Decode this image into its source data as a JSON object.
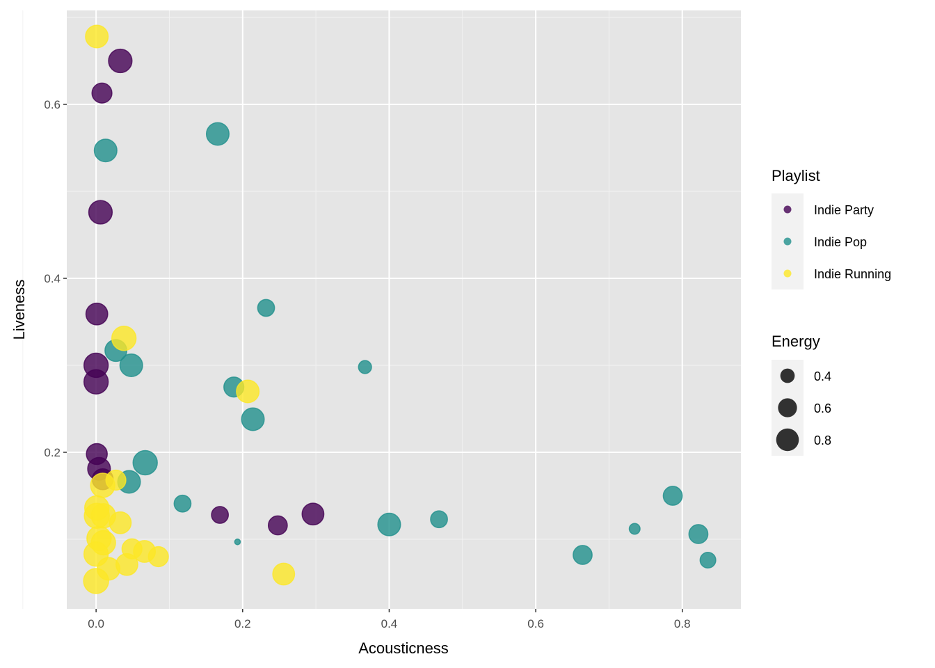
{
  "chart_data": {
    "type": "scatter",
    "title": "",
    "xlabel": "Acousticness",
    "ylabel": "Liveness",
    "xlim": [
      -0.04,
      0.88
    ],
    "ylim": [
      0.02,
      0.708
    ],
    "xticks": [
      0.0,
      0.2,
      0.4,
      0.6,
      0.8
    ],
    "xtick_labels": [
      "0.0",
      "0.2",
      "0.4",
      "0.6",
      "0.8"
    ],
    "yticks": [
      0.2,
      0.4,
      0.6
    ],
    "ytick_labels": [
      "0.2",
      "0.4",
      "0.6"
    ],
    "grid": true,
    "legend_placement": "right",
    "color_legend": {
      "title": "Playlist",
      "entries": [
        "Indie Party",
        "Indie Pop",
        "Indie Running"
      ]
    },
    "size_legend": {
      "title": "Energy",
      "entries": [
        0.4,
        0.6,
        0.8
      ],
      "labels": [
        "0.4",
        "0.6",
        "0.8"
      ]
    },
    "colors": {
      "Indie Party": "#440154",
      "Indie Pop": "#21908C",
      "Indie Running": "#FDE725"
    },
    "series": [
      {
        "name": "Indie Party",
        "points": [
          {
            "x": 0.033,
            "y": 0.65,
            "energy": 0.85
          },
          {
            "x": 0.008,
            "y": 0.613,
            "energy": 0.65
          },
          {
            "x": 0.006,
            "y": 0.476,
            "energy": 0.85
          },
          {
            "x": 0.001,
            "y": 0.359,
            "energy": 0.75
          },
          {
            "x": 0.0,
            "y": 0.3,
            "energy": 0.9
          },
          {
            "x": 0.0,
            "y": 0.281,
            "energy": 0.9
          },
          {
            "x": 0.001,
            "y": 0.198,
            "energy": 0.7
          },
          {
            "x": 0.004,
            "y": 0.181,
            "energy": 0.8
          },
          {
            "x": 0.009,
            "y": 0.169,
            "energy": 0.7
          },
          {
            "x": 0.169,
            "y": 0.128,
            "energy": 0.5
          },
          {
            "x": 0.248,
            "y": 0.116,
            "energy": 0.6
          },
          {
            "x": 0.296,
            "y": 0.129,
            "energy": 0.75
          }
        ]
      },
      {
        "name": "Indie Pop",
        "points": [
          {
            "x": 0.166,
            "y": 0.566,
            "energy": 0.8
          },
          {
            "x": 0.013,
            "y": 0.547,
            "energy": 0.8
          },
          {
            "x": 0.232,
            "y": 0.366,
            "energy": 0.5
          },
          {
            "x": 0.367,
            "y": 0.298,
            "energy": 0.35
          },
          {
            "x": 0.027,
            "y": 0.317,
            "energy": 0.75
          },
          {
            "x": 0.048,
            "y": 0.3,
            "energy": 0.8
          },
          {
            "x": 0.188,
            "y": 0.275,
            "energy": 0.65
          },
          {
            "x": 0.214,
            "y": 0.238,
            "energy": 0.8
          },
          {
            "x": 0.067,
            "y": 0.188,
            "energy": 0.9
          },
          {
            "x": 0.045,
            "y": 0.166,
            "energy": 0.8
          },
          {
            "x": 0.118,
            "y": 0.141,
            "energy": 0.5
          },
          {
            "x": 0.193,
            "y": 0.097,
            "energy": 0.17
          },
          {
            "x": 0.4,
            "y": 0.117,
            "energy": 0.8
          },
          {
            "x": 0.468,
            "y": 0.123,
            "energy": 0.5
          },
          {
            "x": 0.735,
            "y": 0.112,
            "energy": 0.28
          },
          {
            "x": 0.787,
            "y": 0.15,
            "energy": 0.6
          },
          {
            "x": 0.822,
            "y": 0.106,
            "energy": 0.6
          },
          {
            "x": 0.835,
            "y": 0.076,
            "energy": 0.45
          },
          {
            "x": 0.664,
            "y": 0.082,
            "energy": 0.6
          }
        ]
      },
      {
        "name": "Indie Running",
        "points": [
          {
            "x": 0.001,
            "y": 0.678,
            "energy": 0.8
          },
          {
            "x": 0.038,
            "y": 0.331,
            "energy": 0.9
          },
          {
            "x": 0.207,
            "y": 0.27,
            "energy": 0.8
          },
          {
            "x": 0.256,
            "y": 0.06,
            "energy": 0.75
          },
          {
            "x": 0.009,
            "y": 0.162,
            "energy": 0.9
          },
          {
            "x": 0.027,
            "y": 0.168,
            "energy": 0.65
          },
          {
            "x": 0.001,
            "y": 0.136,
            "energy": 0.9
          },
          {
            "x": 0.001,
            "y": 0.127,
            "energy": 0.95
          },
          {
            "x": 0.01,
            "y": 0.127,
            "energy": 0.9
          },
          {
            "x": 0.033,
            "y": 0.119,
            "energy": 0.75
          },
          {
            "x": 0.004,
            "y": 0.101,
            "energy": 0.9
          },
          {
            "x": 0.01,
            "y": 0.096,
            "energy": 0.9
          },
          {
            "x": 0.0,
            "y": 0.083,
            "energy": 0.9
          },
          {
            "x": 0.017,
            "y": 0.066,
            "energy": 0.8
          },
          {
            "x": 0.042,
            "y": 0.071,
            "energy": 0.75
          },
          {
            "x": 0.049,
            "y": 0.089,
            "energy": 0.65
          },
          {
            "x": 0.066,
            "y": 0.086,
            "energy": 0.75
          },
          {
            "x": 0.085,
            "y": 0.08,
            "energy": 0.65
          },
          {
            "x": 0.0,
            "y": 0.052,
            "energy": 0.95
          }
        ]
      }
    ]
  }
}
